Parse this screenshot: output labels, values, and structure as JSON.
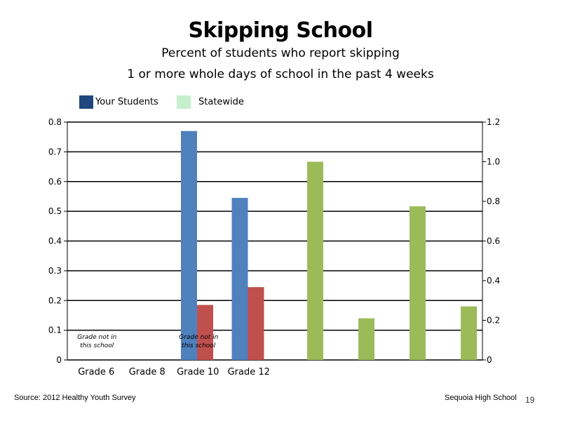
{
  "header": {
    "title": "Skipping School",
    "subtitle_line1": "Percent of students who report skipping",
    "subtitle_line2": "1 or more whole days of school in the past 4 weeks"
  },
  "legend": [
    {
      "label": "Your Students",
      "color": "#1F497D"
    },
    {
      "label": "Statewide",
      "color": "#C6EFCE"
    }
  ],
  "footer": {
    "source": "Source: 2012 Healthy Youth Survey",
    "school": "Sequoia High School",
    "page_number": "19"
  },
  "chart_data": {
    "type": "bar",
    "categories": [
      "Grade 6",
      "Grade 8",
      "Grade 10",
      "Grade 12"
    ],
    "left_axis": {
      "ylim": [
        0,
        0.8
      ],
      "ticks": [
        "0",
        "0.1",
        "0.2",
        "0.3",
        "0.4",
        "0.5",
        "0.6",
        "0.7",
        "0.8"
      ]
    },
    "right_axis": {
      "ylim": [
        0,
        1.2
      ],
      "ticks": [
        "0",
        "0.2",
        "0.4",
        "0.6",
        "0.8",
        "1.0",
        "1.2"
      ]
    },
    "series": [
      {
        "color": "#4F81BD",
        "axis": "left",
        "values": [
          null,
          null,
          0.77,
          0.545
        ]
      },
      {
        "color": "#C0504D",
        "axis": "left",
        "values": [
          null,
          null,
          0.185,
          0.245
        ]
      },
      {
        "color": "#9BBB59",
        "axis": "right",
        "values": [
          1.0,
          0.21,
          0.775,
          0.27
        ]
      }
    ],
    "annotations": [
      {
        "category": "Grade 6",
        "line1": "Grade not in",
        "line2": "this school"
      },
      {
        "category": "Grade 10",
        "line1": "Grade not in",
        "line2": "this school"
      }
    ],
    "grid": true
  }
}
